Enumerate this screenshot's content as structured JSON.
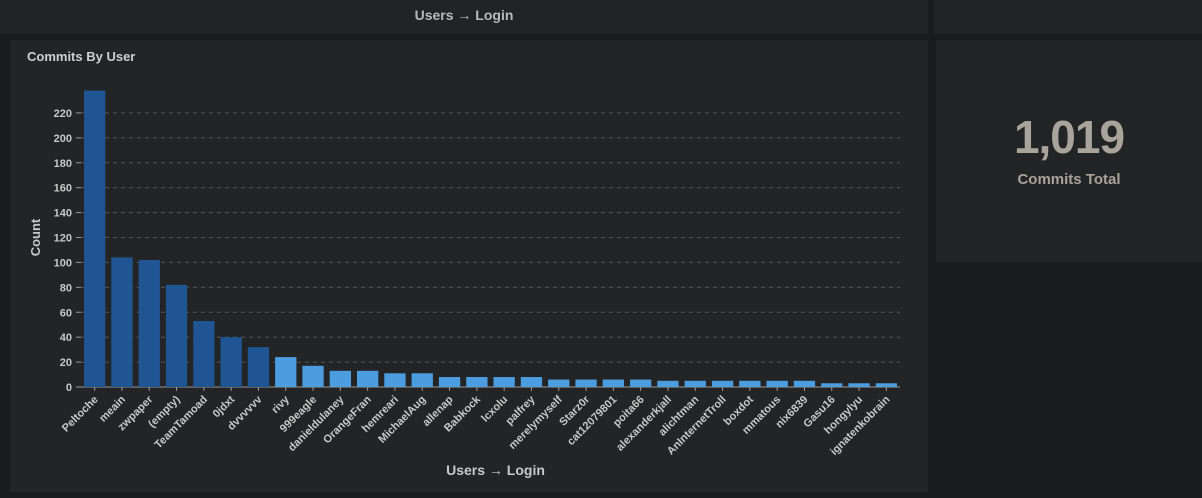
{
  "header": {
    "title": "Users → Login"
  },
  "stat": {
    "value": "1,019",
    "label": "Commits Total"
  },
  "colors": {
    "dark_bar": "#1f5593",
    "light_bar": "#4c9de0",
    "grid": "#555657",
    "axis": "#9a9a9a",
    "text": "#c8c8c8"
  },
  "chart_data": {
    "type": "bar",
    "title": "Commits By User",
    "xlabel": "Users → Login",
    "ylabel": "Count",
    "ylim": [
      0,
      240
    ],
    "yticks": [
      0,
      20,
      40,
      60,
      80,
      100,
      120,
      140,
      160,
      180,
      200,
      220
    ],
    "grid": true,
    "categories": [
      "Peltoche",
      "meain",
      "zwpaper",
      "(empty)",
      "TeamTamoad",
      "0jdxt",
      "dvvvvvv",
      "rivy",
      "999eagle",
      "danieldulaney",
      "OrangeFran",
      "hemreari",
      "MichaelAug",
      "allenap",
      "Babkock",
      "lcxolu",
      "palfrey",
      "merelymyself",
      "Starz0r",
      "cat12079801",
      "poita66",
      "alexanderkjall",
      "alichtman",
      "AnInternetTroll",
      "boxdot",
      "mmatous",
      "nix6839",
      "Gasu16",
      "hongylyu",
      "ignatenkobrain"
    ],
    "values": [
      238,
      104,
      102,
      82,
      53,
      40,
      32,
      24,
      17,
      13,
      13,
      11,
      11,
      8,
      8,
      8,
      8,
      6,
      6,
      6,
      6,
      5,
      5,
      5,
      5,
      5,
      5,
      3,
      3,
      3
    ],
    "bar_colors": [
      "#1f5593",
      "#1f5593",
      "#1f5593",
      "#1f5593",
      "#1f5593",
      "#1f5593",
      "#1f5593",
      "#4c9de0",
      "#4c9de0",
      "#4c9de0",
      "#4c9de0",
      "#4c9de0",
      "#4c9de0",
      "#4c9de0",
      "#4c9de0",
      "#4c9de0",
      "#4c9de0",
      "#4c9de0",
      "#4c9de0",
      "#4c9de0",
      "#4c9de0",
      "#4c9de0",
      "#4c9de0",
      "#4c9de0",
      "#4c9de0",
      "#4c9de0",
      "#4c9de0",
      "#4c9de0",
      "#4c9de0",
      "#4c9de0"
    ]
  }
}
